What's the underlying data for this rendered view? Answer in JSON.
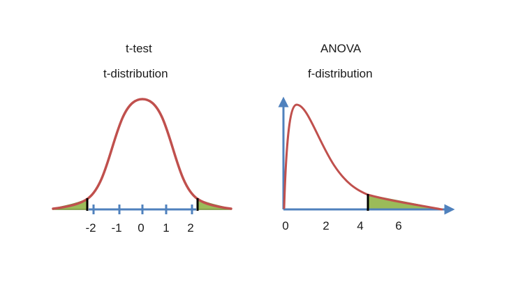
{
  "left": {
    "heading": "t-test",
    "subheading": "t-distribution",
    "ticks": [
      "-2",
      "-1",
      "0",
      "1",
      "2"
    ]
  },
  "right": {
    "heading": "ANOVA",
    "subheading": "f-distribution",
    "ticks": [
      "0",
      "2",
      "4",
      "6"
    ]
  },
  "colors": {
    "curve": "#c0504d",
    "axis": "#4f81bd",
    "tail_fill": "#9bbb59",
    "tail_edge": "#76923c",
    "critical_line": "#000000"
  }
}
